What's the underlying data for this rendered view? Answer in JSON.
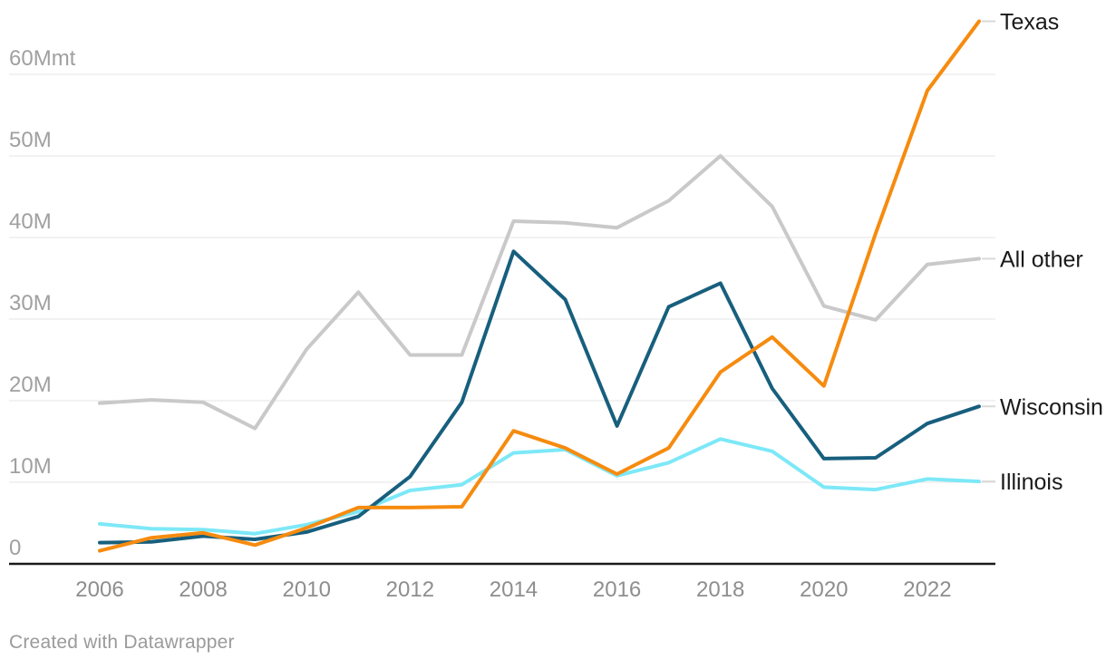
{
  "chart_data": {
    "type": "line",
    "title": "",
    "unit": "Mmt",
    "grid": true,
    "legend_position": "right-end-labels",
    "x": [
      2006,
      2007,
      2008,
      2009,
      2010,
      2011,
      2012,
      2013,
      2014,
      2015,
      2016,
      2017,
      2018,
      2019,
      2020,
      2021,
      2022,
      2023
    ],
    "series": [
      {
        "name": "Texas",
        "color": "#F68B0F",
        "values": [
          1.6,
          3.2,
          3.8,
          2.3,
          4.4,
          6.9,
          6.9,
          7.0,
          16.3,
          14.2,
          11.0,
          14.2,
          23.5,
          27.8,
          21.8,
          40.5,
          58.0,
          66.5
        ]
      },
      {
        "name": "All other",
        "color": "#C9C9C9",
        "values": [
          19.7,
          20.1,
          19.8,
          16.6,
          26.3,
          33.3,
          25.6,
          25.6,
          42.0,
          41.8,
          41.2,
          44.5,
          50.0,
          43.8,
          31.6,
          29.9,
          36.7,
          37.4
        ]
      },
      {
        "name": "Wisconsin",
        "color": "#175F7D",
        "values": [
          2.6,
          2.7,
          3.4,
          3.0,
          3.9,
          5.8,
          10.7,
          19.8,
          38.3,
          32.4,
          16.9,
          31.5,
          34.4,
          21.5,
          12.9,
          13.0,
          17.2,
          19.3
        ]
      },
      {
        "name": "Illinois",
        "color": "#7DE8F7",
        "values": [
          4.9,
          4.3,
          4.2,
          3.7,
          4.8,
          6.4,
          9.0,
          9.7,
          13.6,
          14.0,
          10.8,
          12.4,
          15.3,
          13.8,
          9.4,
          9.1,
          10.4,
          10.1
        ]
      }
    ],
    "y_axis": {
      "ticks": [
        0,
        10,
        20,
        30,
        40,
        50,
        60
      ],
      "tick_labels": [
        "0",
        "10M",
        "20M",
        "30M",
        "40M",
        "50M",
        "60Mmt"
      ],
      "range": [
        0,
        66.7
      ]
    },
    "x_axis": {
      "tick_years": [
        2006,
        2008,
        2010,
        2012,
        2014,
        2016,
        2018,
        2020,
        2022
      ]
    },
    "colors": {
      "gridline": "#e4e4e4",
      "axis": "#1a1a1a",
      "y_tick_text": "#a0a0a0",
      "x_tick_text": "#8e8e8e",
      "label_text": "#1a1a1a",
      "connector": "#d9d9d9"
    }
  },
  "footer": {
    "credit": "Created with Datawrapper"
  }
}
